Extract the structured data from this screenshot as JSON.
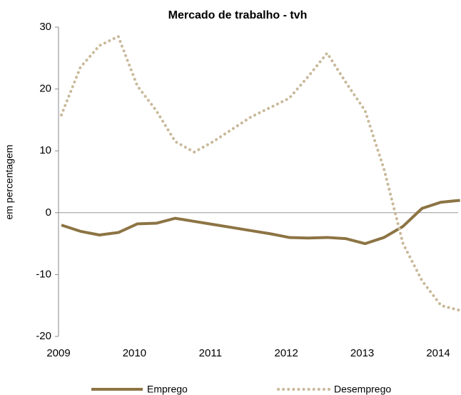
{
  "chart_data": {
    "type": "line",
    "title": "Mercado de trabalho - tvh",
    "y_label": "em percentagem",
    "categories": [
      "2009",
      null,
      null,
      null,
      "2010",
      null,
      null,
      null,
      "2011",
      null,
      null,
      null,
      "2012",
      null,
      null,
      null,
      "2013",
      null,
      null,
      null,
      "2014",
      null
    ],
    "series": [
      {
        "name": "Emprego",
        "color": "#8c7444",
        "style": "solid",
        "values": [
          -2.0,
          -3.0,
          -3.6,
          -3.2,
          -1.8,
          -1.7,
          -0.9,
          -1.4,
          -1.9,
          -2.4,
          -2.9,
          -3.4,
          -4.0,
          -4.1,
          -4.0,
          -4.2,
          -5.0,
          -4.0,
          -2.2,
          0.7,
          1.7,
          2.0
        ]
      },
      {
        "name": "Desemprego",
        "color": "#c9b99a",
        "style": "dotted",
        "values": [
          15.8,
          23.5,
          27.0,
          28.5,
          20.5,
          16.5,
          11.5,
          9.8,
          11.5,
          13.5,
          15.5,
          17.0,
          18.5,
          22.0,
          25.8,
          21.0,
          16.5,
          7.0,
          -5.0,
          -11.0,
          -15.0,
          -15.8
        ]
      }
    ],
    "ylim": [
      -20,
      30
    ],
    "yticks": [
      -20,
      -10,
      0,
      10,
      20,
      30
    ],
    "legend": "bottom"
  }
}
